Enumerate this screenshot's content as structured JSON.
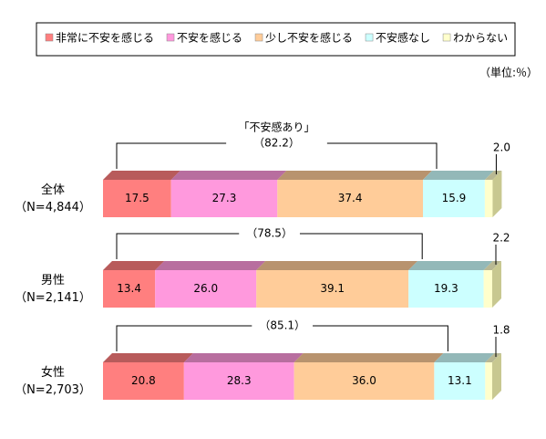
{
  "chart_data": {
    "type": "stacked-bar-3d",
    "unit_note": "（単位:％）",
    "categories": [
      "全体",
      "男性",
      "女性"
    ],
    "category_notes": [
      "（N=4,844）",
      "（N=2,141）",
      "（N=2,703）"
    ],
    "xlim": [
      0,
      100
    ],
    "series": [
      {
        "name": "非常に不安を感じる",
        "color": "#ff7f7f",
        "values": [
          17.5,
          13.4,
          20.8
        ],
        "value_labels": [
          "17.5",
          "13.4",
          "20.8"
        ]
      },
      {
        "name": "不安を感じる",
        "color": "#ff99dd",
        "values": [
          27.3,
          26.0,
          28.3
        ],
        "value_labels": [
          "27.3",
          "26.0",
          "28.3"
        ]
      },
      {
        "name": "少し不安を感じる",
        "color": "#ffcc99",
        "values": [
          37.4,
          39.1,
          36.0
        ],
        "value_labels": [
          "37.4",
          "39.1",
          "36.0"
        ]
      },
      {
        "name": "不安感なし",
        "color": "#ccffff",
        "values": [
          15.9,
          19.3,
          13.1
        ],
        "value_labels": [
          "15.9",
          "19.3",
          "13.1"
        ]
      },
      {
        "name": "わからない",
        "color": "#ffffcc",
        "values": [
          2.0,
          2.2,
          1.8
        ],
        "value_labels": [
          "2.0",
          "2.2",
          "1.8"
        ]
      }
    ],
    "bracket_title": "「不安感あり」",
    "bracket_values": [
      82.2,
      78.5,
      85.1
    ],
    "bracket_value_labels": [
      "（82.2）",
      "（78.5）",
      "（85.1）"
    ]
  }
}
